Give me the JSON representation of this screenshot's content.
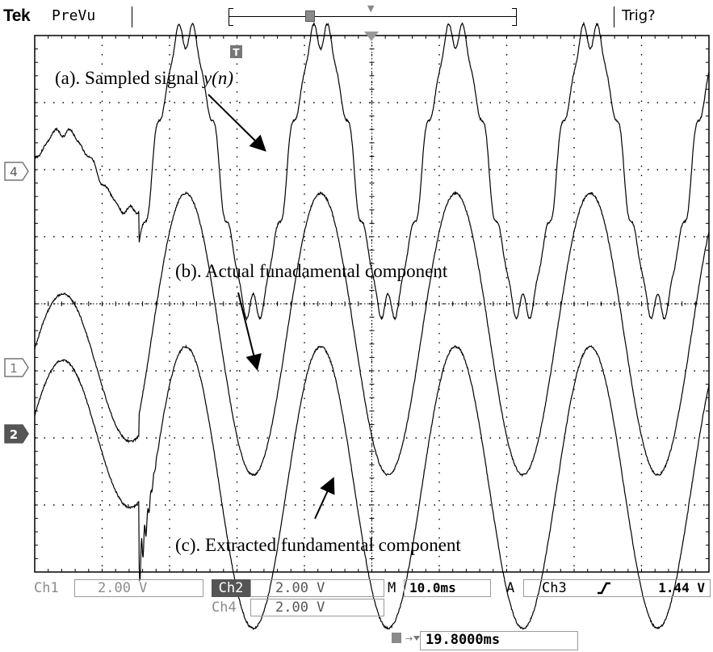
{
  "header": {
    "brand": "Tek",
    "mode": "PreVu",
    "trigger_state": "Trig?"
  },
  "markers": {
    "trigger": "T",
    "ch4": "4",
    "ch1": "1",
    "ch2": "2"
  },
  "annotations": {
    "a_prefix": "(a). Sampled signal ",
    "a_signal": "y(n)",
    "b": "(b). Actual funadamental component",
    "c": "(c). Extracted fundamental component"
  },
  "readout": {
    "ch1_label": "Ch1",
    "ch1_scale": "2.00 V",
    "ch2_label": "Ch2",
    "ch2_scale": "2.00 V",
    "ch4_label": "Ch4",
    "ch4_scale": "2.00 V",
    "m_label": "M",
    "timebase": "10.0ms",
    "a_label": "A",
    "trig_source": "Ch3",
    "trig_slope_icon": "rising-edge-icon",
    "trig_level": "1.44 V",
    "trig_position": "19.8000ms"
  },
  "chart_data": {
    "type": "line",
    "grid": true,
    "divisions": {
      "x": 10,
      "y": 8
    },
    "x_unit": "ms",
    "time_per_div_ms": 10.0,
    "xlim": [
      0,
      100
    ],
    "disturbance_time_ms": 15.5,
    "fundamental_period_ms": 20,
    "series": [
      {
        "name": "4",
        "volts_per_div": 2.0,
        "before_amplitude_div": 0.6,
        "after_amplitude_div": 2.1,
        "offset_div": 0.0,
        "harmonic_ripple": true
      },
      {
        "name": "1",
        "volts_per_div": 2.0,
        "before_amplitude_div": 1.1,
        "after_amplitude_div": 2.1,
        "offset_div": 0.5
      },
      {
        "name": "2",
        "volts_per_div": 2.0,
        "before_amplitude_div": 1.1,
        "after_amplitude_div": 2.1,
        "offset_div": -0.8,
        "transient_oscillation": true
      }
    ],
    "colors": {
      "trace": "#000000",
      "grid": "#000000"
    }
  }
}
